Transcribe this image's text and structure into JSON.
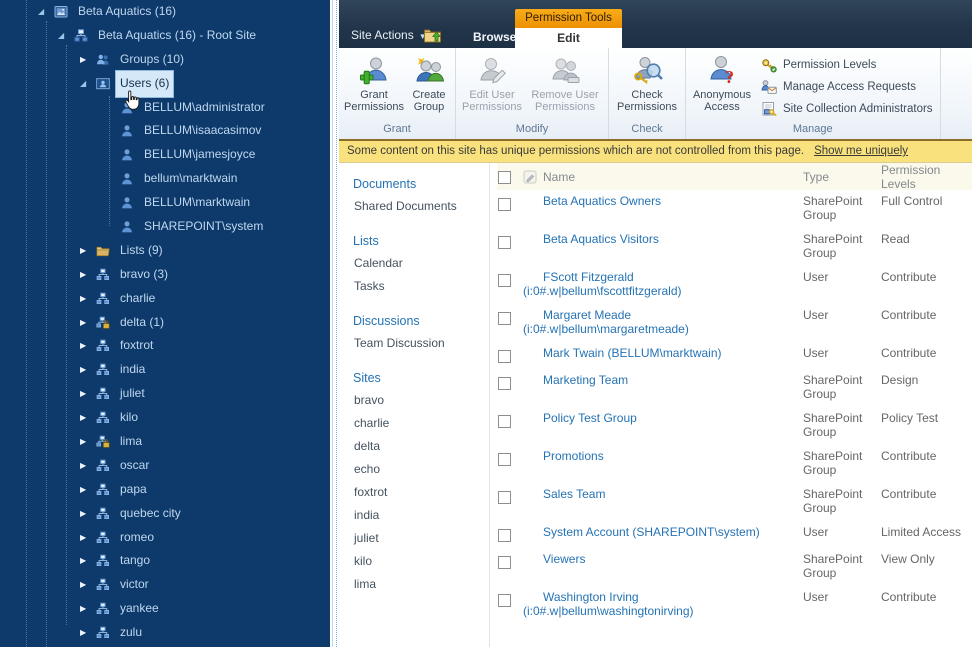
{
  "colors": {
    "tree_background": "#0E3A6B",
    "tree_text": "#BFD7EF",
    "selection_background": "#D5E8F8",
    "contextual_tab_orange": "#EF9608",
    "top_bar_navy": "#21344A",
    "status_bar_yellow": "#F9E27D",
    "link_blue": "#2573B4"
  },
  "tree": {
    "items": [
      {
        "label": "Beta Aquatics (16)",
        "level": 0,
        "icon": "site-collection-icon",
        "arrow": "expanded",
        "selected": false
      },
      {
        "label": "Beta Aquatics (16) - Root Site",
        "level": 1,
        "icon": "root-site-icon",
        "arrow": "expanded",
        "selected": false
      },
      {
        "label": "Groups (10)",
        "level": 2,
        "icon": "groups-icon",
        "arrow": "collapsed",
        "selected": false
      },
      {
        "label": "Users (6)",
        "level": 2,
        "icon": "users-icon",
        "arrow": "expanded",
        "selected": true
      },
      {
        "label": "BELLUM\\administrator",
        "level": 3,
        "icon": "user-icon",
        "arrow": "none",
        "selected": false
      },
      {
        "label": "BELLUM\\isaacasimov",
        "level": 3,
        "icon": "user-icon",
        "arrow": "none",
        "selected": false
      },
      {
        "label": "BELLUM\\jamesjoyce",
        "level": 3,
        "icon": "user-icon",
        "arrow": "none",
        "selected": false
      },
      {
        "label": "bellum\\marktwain",
        "level": 3,
        "icon": "user-icon",
        "arrow": "none",
        "selected": false
      },
      {
        "label": "BELLUM\\marktwain",
        "level": 3,
        "icon": "user-icon",
        "arrow": "none",
        "selected": false
      },
      {
        "label": "SHAREPOINT\\system",
        "level": 3,
        "icon": "user-icon",
        "arrow": "none",
        "selected": false
      },
      {
        "label": "Lists (9)",
        "level": 2,
        "icon": "folder-icon",
        "arrow": "collapsed",
        "selected": false
      },
      {
        "label": "bravo (3)",
        "level": 2,
        "icon": "site-icon",
        "arrow": "collapsed",
        "selected": false
      },
      {
        "label": "charlie",
        "level": 2,
        "icon": "site-icon",
        "arrow": "collapsed",
        "selected": false
      },
      {
        "label": "delta (1)",
        "level": 2,
        "icon": "site-lock-icon",
        "arrow": "collapsed",
        "selected": false
      },
      {
        "label": "foxtrot",
        "level": 2,
        "icon": "site-icon",
        "arrow": "collapsed",
        "selected": false
      },
      {
        "label": "india",
        "level": 2,
        "icon": "site-icon",
        "arrow": "collapsed",
        "selected": false
      },
      {
        "label": "juliet",
        "level": 2,
        "icon": "site-icon",
        "arrow": "collapsed",
        "selected": false
      },
      {
        "label": "kilo",
        "level": 2,
        "icon": "site-icon",
        "arrow": "collapsed",
        "selected": false
      },
      {
        "label": "lima",
        "level": 2,
        "icon": "site-lock-icon",
        "arrow": "collapsed",
        "selected": false
      },
      {
        "label": "oscar",
        "level": 2,
        "icon": "site-icon",
        "arrow": "collapsed",
        "selected": false
      },
      {
        "label": "papa",
        "level": 2,
        "icon": "site-icon",
        "arrow": "collapsed",
        "selected": false
      },
      {
        "label": "quebec city",
        "level": 2,
        "icon": "site-icon",
        "arrow": "collapsed",
        "selected": false
      },
      {
        "label": "romeo",
        "level": 2,
        "icon": "site-icon",
        "arrow": "collapsed",
        "selected": false
      },
      {
        "label": "tango",
        "level": 2,
        "icon": "site-icon",
        "arrow": "collapsed",
        "selected": false
      },
      {
        "label": "victor",
        "level": 2,
        "icon": "site-icon",
        "arrow": "collapsed",
        "selected": false
      },
      {
        "label": "yankee",
        "level": 2,
        "icon": "site-icon",
        "arrow": "collapsed",
        "selected": false
      },
      {
        "label": "zulu",
        "level": 2,
        "icon": "site-icon",
        "arrow": "collapsed",
        "selected": false
      }
    ]
  },
  "ribbon": {
    "site_actions_label": "Site Actions",
    "browse_tab": "Browse",
    "edit_tab": "Edit",
    "contextual_tab_title": "Permission Tools",
    "groups": [
      {
        "label": "Grant",
        "buttons": [
          {
            "label": "Grant Permissions",
            "icon": "grant-permissions-icon",
            "enabled": true
          },
          {
            "label": "Create Group",
            "icon": "create-group-icon",
            "enabled": true
          }
        ]
      },
      {
        "label": "Modify",
        "buttons": [
          {
            "label": "Edit User Permissions",
            "icon": "edit-user-permissions-icon",
            "enabled": false
          },
          {
            "label": "Remove User Permissions",
            "icon": "remove-user-permissions-icon",
            "enabled": false
          }
        ]
      },
      {
        "label": "Check",
        "buttons": [
          {
            "label": "Check Permissions",
            "icon": "check-permissions-icon",
            "enabled": true
          }
        ]
      },
      {
        "label": "Manage",
        "buttons": [
          {
            "label": "Anonymous Access",
            "icon": "anonymous-access-icon",
            "enabled": true
          }
        ],
        "menu_items": [
          {
            "label": "Permission Levels",
            "icon": "permission-levels-icon"
          },
          {
            "label": "Manage Access Requests",
            "icon": "manage-access-requests-icon"
          },
          {
            "label": "Site Collection Administrators",
            "icon": "site-collection-administrators-icon"
          }
        ]
      }
    ]
  },
  "status_bar": {
    "message": "Some content on this site has unique permissions which are not controlled from this page.",
    "link_label": "Show me uniquely"
  },
  "quick_launch": {
    "sections": [
      {
        "header": "Documents",
        "items": [
          "Shared Documents"
        ]
      },
      {
        "header": "Lists",
        "items": [
          "Calendar",
          "Tasks"
        ]
      },
      {
        "header": "Discussions",
        "items": [
          "Team Discussion"
        ]
      },
      {
        "header": "Sites",
        "items": [
          "bravo",
          "charlie",
          "delta",
          "echo",
          "foxtrot",
          "india",
          "juliet",
          "kilo",
          "lima"
        ]
      }
    ]
  },
  "permissions_table": {
    "columns": {
      "name": "Name",
      "type": "Type",
      "levels": "Permission Levels"
    },
    "rows": [
      {
        "name": "Beta Aquatics Owners",
        "account": "",
        "type": "SharePoint Group",
        "levels": "Full Control"
      },
      {
        "name": "Beta Aquatics Visitors",
        "account": "",
        "type": "SharePoint Group",
        "levels": "Read"
      },
      {
        "name": "FScott Fitzgerald",
        "account": "(i:0#.w|bellum\\fscottfitzgerald)",
        "type": "User",
        "levels": "Contribute"
      },
      {
        "name": "Margaret Meade",
        "account": "(i:0#.w|bellum\\margaretmeade)",
        "type": "User",
        "levels": "Contribute"
      },
      {
        "name": "Mark Twain (BELLUM\\marktwain)",
        "account": "",
        "type": "User",
        "levels": "Contribute"
      },
      {
        "name": "Marketing Team",
        "account": "",
        "type": "SharePoint Group",
        "levels": "Design"
      },
      {
        "name": "Policy Test Group",
        "account": "",
        "type": "SharePoint Group",
        "levels": "Policy Test"
      },
      {
        "name": "Promotions",
        "account": "",
        "type": "SharePoint Group",
        "levels": "Contribute"
      },
      {
        "name": "Sales Team",
        "account": "",
        "type": "SharePoint Group",
        "levels": "Contribute"
      },
      {
        "name": "System Account (SHAREPOINT\\system)",
        "account": "",
        "type": "User",
        "levels": "Limited Access"
      },
      {
        "name": "Viewers",
        "account": "",
        "type": "SharePoint Group",
        "levels": "View Only"
      },
      {
        "name": "Washington Irving",
        "account": "(i:0#.w|bellum\\washingtonirving)",
        "type": "User",
        "levels": "Contribute"
      }
    ]
  }
}
